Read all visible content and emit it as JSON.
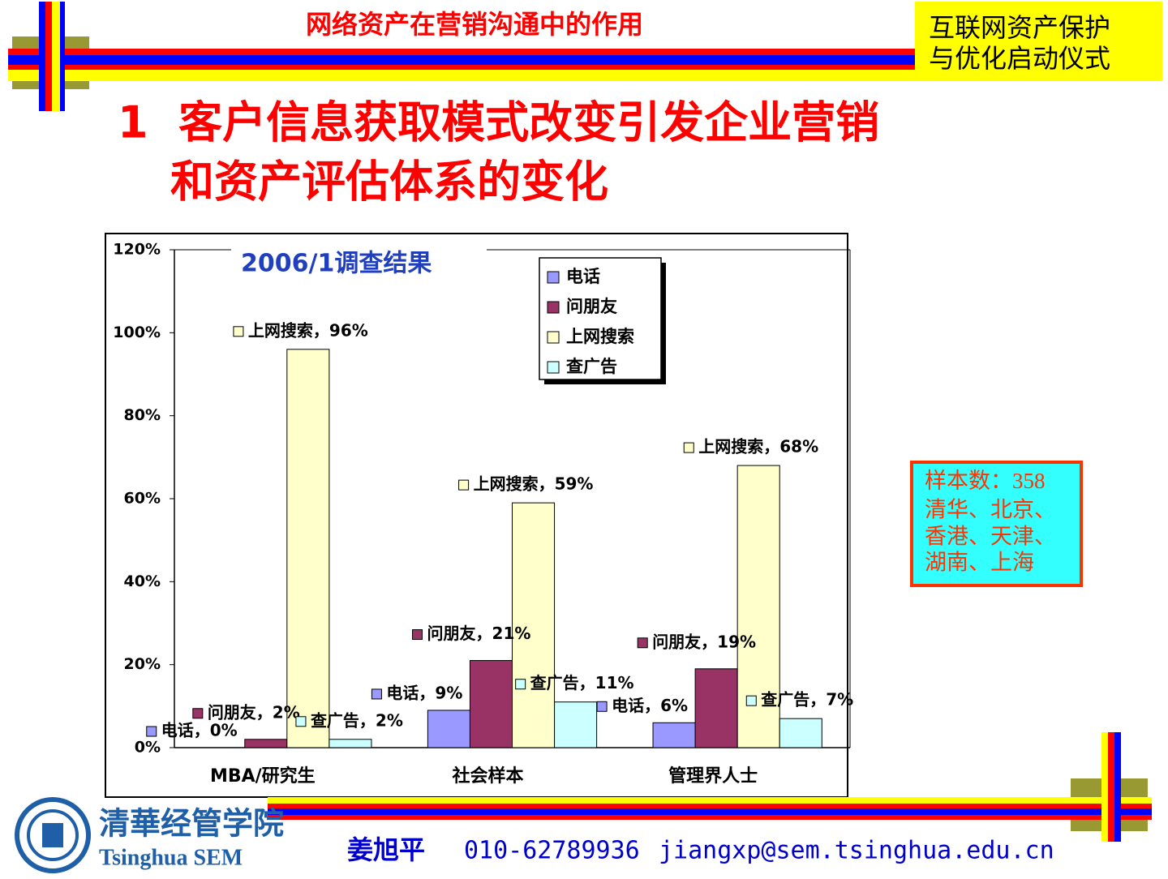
{
  "slide": {
    "header_title": "网络资产在营销沟通中的作用",
    "badge": [
      "互联网资产保护",
      "与优化启动仪式"
    ],
    "heading": [
      "1  客户信息获取模式改变引发企业营销",
      "和资产评估体系的变化"
    ],
    "sample_box": [
      "样本数：358",
      "清华、北京、",
      "香港、天津、",
      "湖南、上海"
    ],
    "logo": [
      "清華经管学院",
      "Tsinghua SEM"
    ],
    "contact": [
      "姜旭平",
      "010-62789936",
      "jiangxp@sem.tsinghua.edu.cn"
    ]
  },
  "chart_data": {
    "type": "bar",
    "title": "2006/1调查结果",
    "categories": [
      "MBA/研究生",
      "社会样本",
      "管理界人士"
    ],
    "series": [
      {
        "name": "电话",
        "color": "#9999ff",
        "values": [
          0,
          9,
          6
        ],
        "value_labels": [
          "电话，0%",
          "电话，9%",
          "电话，6%"
        ]
      },
      {
        "name": "问朋友",
        "color": "#993366",
        "values": [
          2,
          21,
          19
        ],
        "value_labels": [
          "问朋友，2%",
          "问朋友，21%",
          "问朋友，19%"
        ]
      },
      {
        "name": "上网搜索",
        "color": "#ffffcc",
        "values": [
          96,
          59,
          68
        ],
        "value_labels": [
          "上网搜索，96%",
          "上网搜索，59%",
          "上网搜索，68%"
        ]
      },
      {
        "name": "查广告",
        "color": "#ccffff",
        "values": [
          2,
          11,
          7
        ],
        "value_labels": [
          "查广告，2%",
          "查广告，11%",
          "查广告，7%"
        ]
      }
    ],
    "ylim": [
      0,
      120
    ],
    "yticks": [
      {
        "value": 0,
        "label": "0%"
      },
      {
        "value": 20,
        "label": "20%"
      },
      {
        "value": 40,
        "label": "40%"
      },
      {
        "value": 60,
        "label": "60%"
      },
      {
        "value": 80,
        "label": "80%"
      },
      {
        "value": 100,
        "label": "100%"
      },
      {
        "value": 120,
        "label": "120%"
      }
    ],
    "grid": false
  }
}
